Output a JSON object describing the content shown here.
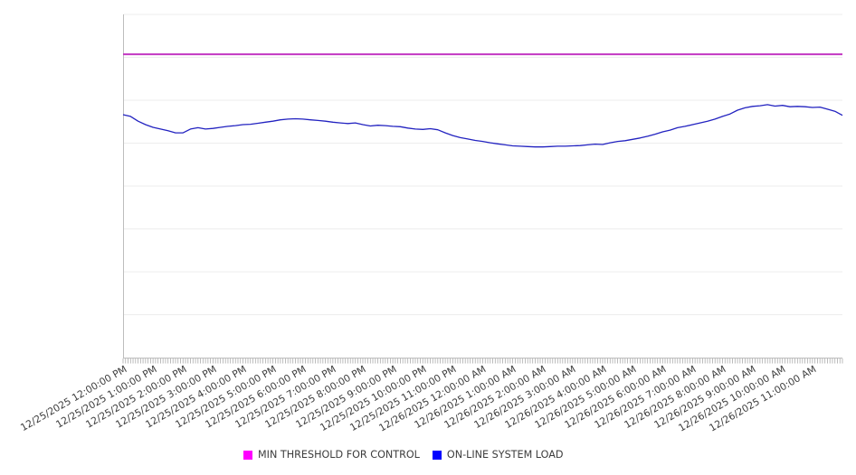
{
  "chart_data": {
    "type": "line",
    "title": "",
    "xlabel": "",
    "ylabel": "",
    "ylim": [
      0,
      100
    ],
    "grid": true,
    "gridline_values": [
      12.5,
      25,
      37.5,
      50,
      62.5,
      75,
      87.5,
      100
    ],
    "legend_position": "bottom",
    "grid_color": "#ededed",
    "axis_color": "#bdbdbd",
    "tick_color": "#ababab",
    "label_color": "#3d3d3d",
    "minor_ticks_per_hour": 12,
    "hours_shown": 24,
    "categories": [
      "12/25/2025 12:00:00 PM",
      "12/25/2025 1:00:00 PM",
      "12/25/2025 2:00:00 PM",
      "12/25/2025 3:00:00 PM",
      "12/25/2025 4:00:00 PM",
      "12/25/2025 5:00:00 PM",
      "12/25/2025 6:00:00 PM",
      "12/25/2025 7:00:00 PM",
      "12/25/2025 8:00:00 PM",
      "12/25/2025 9:00:00 PM",
      "12/25/2025 10:00:00 PM",
      "12/25/2025 11:00:00 PM",
      "12/26/2025 12:00:00 AM",
      "12/26/2025 1:00:00 AM",
      "12/26/2025 2:00:00 AM",
      "12/26/2025 3:00:00 AM",
      "12/26/2025 4:00:00 AM",
      "12/26/2025 5:00:00 AM",
      "12/26/2025 6:00:00 AM",
      "12/26/2025 7:00:00 AM",
      "12/26/2025 8:00:00 AM",
      "12/26/2025 9:00:00 AM",
      "12/26/2025 10:00:00 AM",
      "12/26/2025 11:00:00 AM"
    ],
    "series": [
      {
        "name": "MIN THRESHOLD FOR CONTROL",
        "color": "#ff00ff",
        "line_color": "#c237c2",
        "line_width": 2,
        "kind": "constant-threshold",
        "value": 88.4
      },
      {
        "name": "ON-LINE SYSTEM LOAD",
        "color": "#0000ff",
        "line_color": "#2222c0",
        "line_width": 1.3,
        "kind": "timeseries",
        "start": "12/25/2025 12:00:00 PM",
        "interval_minutes": 15,
        "values": [
          70.8,
          70.3,
          68.9,
          67.9,
          67.1,
          66.6,
          66.1,
          65.5,
          65.5,
          66.6,
          67.0,
          66.6,
          66.8,
          67.1,
          67.4,
          67.6,
          67.9,
          68.0,
          68.3,
          68.6,
          68.9,
          69.3,
          69.5,
          69.6,
          69.5,
          69.3,
          69.1,
          68.9,
          68.6,
          68.4,
          68.2,
          68.4,
          67.9,
          67.5,
          67.7,
          67.6,
          67.4,
          67.3,
          66.9,
          66.6,
          66.5,
          66.7,
          66.4,
          65.5,
          64.7,
          64.1,
          63.7,
          63.3,
          63.0,
          62.6,
          62.3,
          62.0,
          61.7,
          61.6,
          61.5,
          61.4,
          61.4,
          61.5,
          61.6,
          61.6,
          61.7,
          61.8,
          62.0,
          62.2,
          62.1,
          62.6,
          63.0,
          63.2,
          63.6,
          64.0,
          64.5,
          65.1,
          65.8,
          66.3,
          67.0,
          67.4,
          67.9,
          68.4,
          68.9,
          69.5,
          70.3,
          71.0,
          72.1,
          72.8,
          73.2,
          73.4,
          73.7,
          73.3,
          73.5,
          73.1,
          73.2,
          73.1,
          72.9,
          73.0,
          72.4,
          71.8,
          70.6
        ]
      }
    ]
  },
  "legend": {
    "items": [
      {
        "label": "MIN THRESHOLD FOR CONTROL",
        "color": "#ff00ff"
      },
      {
        "label": "ON-LINE SYSTEM LOAD",
        "color": "#0000ff"
      }
    ]
  }
}
